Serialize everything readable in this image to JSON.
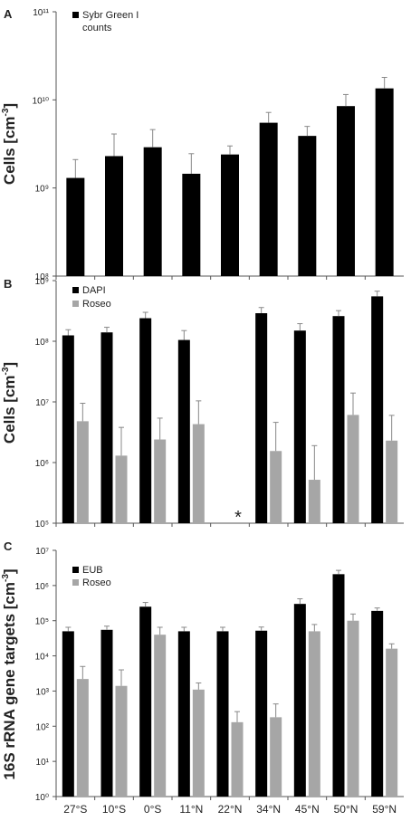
{
  "chart_data": [
    {
      "panel": "A",
      "type": "bar",
      "ylabel": "Cells [cm-3]",
      "yscale": "log",
      "ylim": [
        100000000.0,
        100000000000.0
      ],
      "categories": [
        "27°S",
        "10°S",
        "0°S",
        "11°N",
        "22°N",
        "34°N",
        "45°N",
        "50°N",
        "59°N"
      ],
      "legend_position": "top-left",
      "series": [
        {
          "name": "Sybr Green I counts",
          "color": "#000000",
          "values": [
            1300000000.0,
            2300000000.0,
            2900000000.0,
            1450000000.0,
            2400000000.0,
            5500000000.0,
            3900000000.0,
            8500000000.0,
            13500000000.0
          ],
          "errors": [
            2100000000.0,
            4100000000.0,
            4600000000.0,
            2450000000.0,
            3000000000.0,
            7200000000.0,
            5000000000.0,
            11500000000.0,
            18000000000.0
          ]
        }
      ]
    },
    {
      "panel": "B",
      "type": "bar",
      "ylabel": "Cells [cm-3]",
      "yscale": "log",
      "ylim": [
        100000.0,
        1000000000.0
      ],
      "categories": [
        "27°S",
        "10°S",
        "0°S",
        "11°N",
        "22°N",
        "34°N",
        "45°N",
        "50°N",
        "59°N"
      ],
      "legend_position": "top-left",
      "annotations": [
        {
          "category": "22°N",
          "text": "*"
        }
      ],
      "series": [
        {
          "name": "DAPI",
          "color": "#000000",
          "values": [
            125000000.0,
            140000000.0,
            240000000.0,
            105000000.0,
            null,
            290000000.0,
            150000000.0,
            260000000.0,
            550000000.0
          ],
          "errors": [
            155000000.0,
            170000000.0,
            300000000.0,
            150000000.0,
            null,
            360000000.0,
            195000000.0,
            320000000.0,
            670000000.0
          ]
        },
        {
          "name": "Roseo",
          "color": "#a6a6a6",
          "values": [
            4800000.0,
            1300000.0,
            2400000.0,
            4300000.0,
            null,
            1550000.0,
            520000.0,
            6100000.0,
            2300000.0
          ],
          "errors": [
            9500000.0,
            3800000.0,
            5400000.0,
            10400000.0,
            null,
            4600000.0,
            1900000.0,
            14000000.0,
            6000000.0
          ]
        }
      ]
    },
    {
      "panel": "C",
      "type": "bar",
      "ylabel": "16S rRNA gene targets [cm-3]",
      "yscale": "log",
      "ylim": [
        1,
        10000000.0
      ],
      "categories": [
        "27°S",
        "10°S",
        "0°S",
        "11°N",
        "22°N",
        "34°N",
        "45°N",
        "50°N",
        "59°N"
      ],
      "legend_position": "top-left",
      "series": [
        {
          "name": "EUB",
          "color": "#000000",
          "values": [
            50000.0,
            55000.0,
            250000.0,
            50000.0,
            50000.0,
            52000.0,
            300000.0,
            2100000.0,
            190000.0
          ],
          "errors": [
            65000.0,
            70000.0,
            330000.0,
            65000.0,
            65000.0,
            66000.0,
            420000.0,
            2700000.0,
            230000.0
          ]
        },
        {
          "name": "Roseo",
          "color": "#a6a6a6",
          "values": [
            2200.0,
            1400.0,
            40000.0,
            1100.0,
            130.0,
            180.0,
            50000.0,
            100000.0,
            16000.0
          ],
          "errors": [
            5000.0,
            4000.0,
            65000.0,
            1700.0,
            260.0,
            430.0,
            78000.0,
            155000.0,
            22000.0
          ]
        }
      ]
    }
  ],
  "labels": {
    "panel_a": "A",
    "panel_b": "B",
    "panel_c": "C",
    "ylabel_cells": "Cells [cm",
    "ylabel_16s": "16S rRNA gene targets [cm",
    "ylabel_exp": "-3",
    "ylabel_close": "]",
    "legend_a_line1": "Sybr Green I",
    "legend_a_line2": "counts",
    "legend_b_1": "DAPI",
    "legend_b_2": "Roseo",
    "legend_c_1": "EUB",
    "legend_c_2": "Roseo",
    "asterisk": "*"
  }
}
